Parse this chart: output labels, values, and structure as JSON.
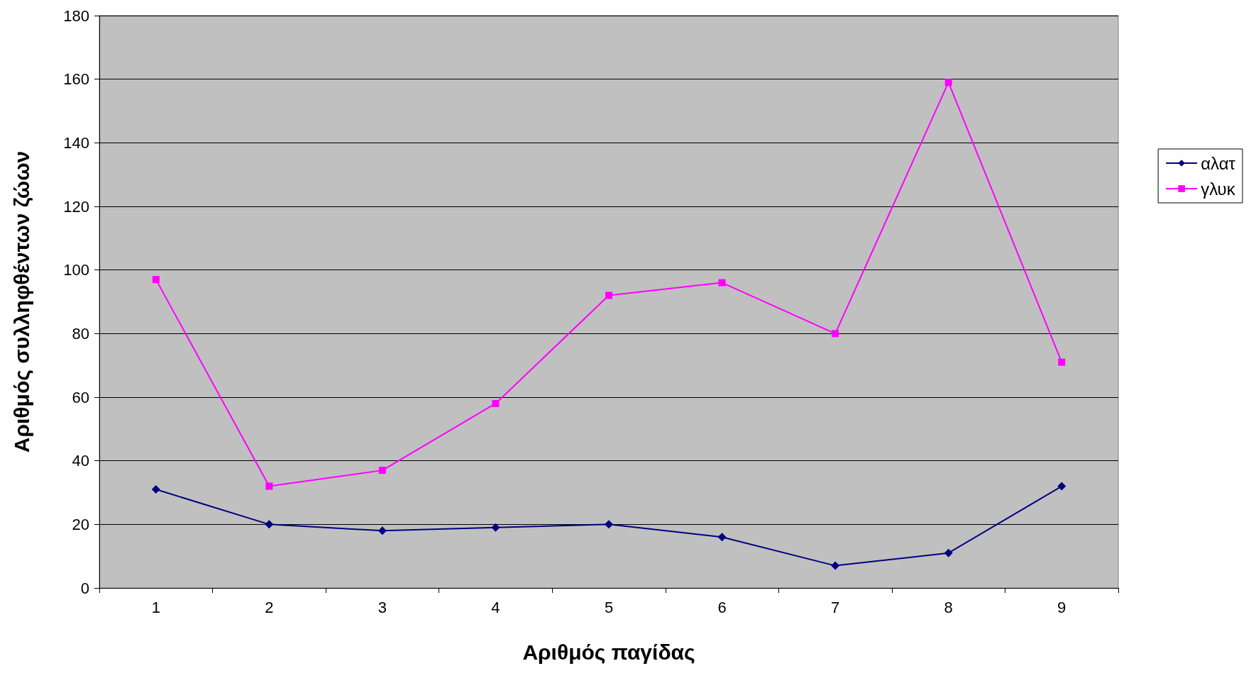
{
  "chart_data": {
    "type": "line",
    "xlabel": "Αριθμός παγίδας",
    "ylabel": "Αριθμός συλληφθέντων ζώων",
    "categories": [
      "1",
      "2",
      "3",
      "4",
      "5",
      "6",
      "7",
      "8",
      "9"
    ],
    "series": [
      {
        "name": "αλατ",
        "color": "#000080",
        "marker": "diamond",
        "values": [
          31,
          20,
          18,
          19,
          20,
          16,
          7,
          11,
          32
        ]
      },
      {
        "name": "γλυκ",
        "color": "#ff00ff",
        "marker": "square",
        "values": [
          97,
          32,
          37,
          58,
          92,
          96,
          80,
          159,
          71
        ]
      }
    ],
    "ylim": [
      0,
      180
    ],
    "yticks": [
      0,
      20,
      40,
      60,
      80,
      100,
      120,
      140,
      160,
      180
    ],
    "grid": "y",
    "legend": "right",
    "line_style": "solid"
  }
}
